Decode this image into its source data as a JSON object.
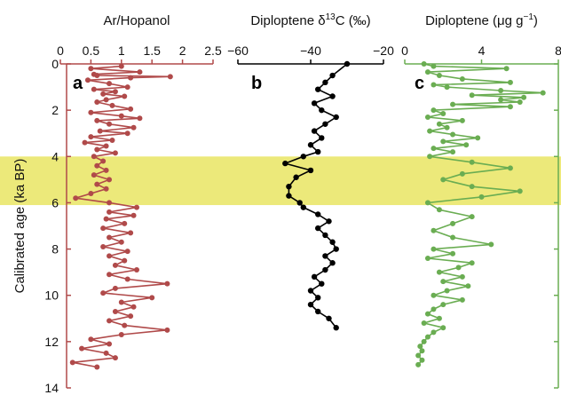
{
  "figure": {
    "y_axis_label": "Calibrated age (ka BP)",
    "highlight_color": "#ece97a"
  },
  "chart_data": [
    {
      "type": "line",
      "panel": "a",
      "xlabel": "Ar/Hopanol",
      "ylabel": "Calibrated age (ka BP)",
      "xlim": [
        0,
        2.5
      ],
      "ylim": [
        0,
        14
      ],
      "x_ticks": [
        "0",
        "0.5",
        "1",
        "1.5",
        "2",
        "2.5"
      ],
      "y_ticks": [
        "0",
        "2",
        "4",
        "6",
        "8",
        "10",
        "12",
        "14"
      ],
      "highlight_band": [
        4.0,
        6.1
      ],
      "color": "#b04a4a",
      "points": [
        {
          "y": 0.1,
          "x": 1.0
        },
        {
          "y": 0.2,
          "x": 0.5
        },
        {
          "y": 0.35,
          "x": 1.3
        },
        {
          "y": 0.45,
          "x": 0.55
        },
        {
          "y": 0.5,
          "x": 0.6
        },
        {
          "y": 0.55,
          "x": 1.8
        },
        {
          "y": 0.6,
          "x": 1.15
        },
        {
          "y": 0.7,
          "x": 0.45
        },
        {
          "y": 0.85,
          "x": 0.8
        },
        {
          "y": 1.0,
          "x": 1.1
        },
        {
          "y": 1.1,
          "x": 0.55
        },
        {
          "y": 1.2,
          "x": 0.9
        },
        {
          "y": 1.3,
          "x": 0.7
        },
        {
          "y": 1.4,
          "x": 1.05
        },
        {
          "y": 1.55,
          "x": 0.75
        },
        {
          "y": 1.65,
          "x": 0.6
        },
        {
          "y": 1.8,
          "x": 0.85
        },
        {
          "y": 1.95,
          "x": 1.15
        },
        {
          "y": 2.1,
          "x": 0.5
        },
        {
          "y": 2.25,
          "x": 1.0
        },
        {
          "y": 2.35,
          "x": 1.3
        },
        {
          "y": 2.45,
          "x": 0.6
        },
        {
          "y": 2.6,
          "x": 0.8
        },
        {
          "y": 2.75,
          "x": 1.2
        },
        {
          "y": 2.9,
          "x": 0.65
        },
        {
          "y": 3.0,
          "x": 1.1
        },
        {
          "y": 3.15,
          "x": 0.5
        },
        {
          "y": 3.3,
          "x": 0.85
        },
        {
          "y": 3.4,
          "x": 0.4
        },
        {
          "y": 3.55,
          "x": 0.75
        },
        {
          "y": 3.7,
          "x": 0.6
        },
        {
          "y": 3.85,
          "x": 0.9
        },
        {
          "y": 4.0,
          "x": 0.55
        },
        {
          "y": 4.2,
          "x": 0.7
        },
        {
          "y": 4.4,
          "x": 0.6
        },
        {
          "y": 4.6,
          "x": 0.75
        },
        {
          "y": 4.8,
          "x": 0.55
        },
        {
          "y": 5.0,
          "x": 0.8
        },
        {
          "y": 5.2,
          "x": 0.6
        },
        {
          "y": 5.4,
          "x": 0.75
        },
        {
          "y": 5.6,
          "x": 0.5
        },
        {
          "y": 5.8,
          "x": 0.25
        },
        {
          "y": 6.0,
          "x": 0.8
        },
        {
          "y": 6.2,
          "x": 1.25
        },
        {
          "y": 6.4,
          "x": 0.8
        },
        {
          "y": 6.55,
          "x": 1.2
        },
        {
          "y": 6.7,
          "x": 0.75
        },
        {
          "y": 6.9,
          "x": 1.05
        },
        {
          "y": 7.1,
          "x": 0.7
        },
        {
          "y": 7.3,
          "x": 1.15
        },
        {
          "y": 7.5,
          "x": 0.8
        },
        {
          "y": 7.7,
          "x": 1.0
        },
        {
          "y": 7.9,
          "x": 0.7
        },
        {
          "y": 8.1,
          "x": 1.1
        },
        {
          "y": 8.3,
          "x": 0.8
        },
        {
          "y": 8.5,
          "x": 1.05
        },
        {
          "y": 8.7,
          "x": 0.9
        },
        {
          "y": 8.9,
          "x": 1.25
        },
        {
          "y": 9.1,
          "x": 0.8
        },
        {
          "y": 9.3,
          "x": 1.1
        },
        {
          "y": 9.5,
          "x": 1.75
        },
        {
          "y": 9.7,
          "x": 0.9
        },
        {
          "y": 9.9,
          "x": 0.7
        },
        {
          "y": 10.1,
          "x": 1.5
        },
        {
          "y": 10.3,
          "x": 1.0
        },
        {
          "y": 10.5,
          "x": 1.2
        },
        {
          "y": 10.7,
          "x": 0.9
        },
        {
          "y": 10.9,
          "x": 1.15
        },
        {
          "y": 11.1,
          "x": 0.8
        },
        {
          "y": 11.3,
          "x": 1.05
        },
        {
          "y": 11.5,
          "x": 1.75
        },
        {
          "y": 11.7,
          "x": 1.0
        },
        {
          "y": 11.9,
          "x": 0.5
        },
        {
          "y": 12.1,
          "x": 0.8
        },
        {
          "y": 12.3,
          "x": 0.35
        },
        {
          "y": 12.5,
          "x": 0.75
        },
        {
          "y": 12.7,
          "x": 0.9
        },
        {
          "y": 12.9,
          "x": 0.2
        },
        {
          "y": 13.1,
          "x": 0.6
        }
      ]
    },
    {
      "type": "line",
      "panel": "b",
      "xlabel": "Diploptene δ13C (‰)",
      "xlabel_parts": [
        "Diploptene δ",
        "13",
        "C (‰)"
      ],
      "xlim": [
        -60,
        -20
      ],
      "x_ticks": [
        "−60",
        "−40",
        "−20"
      ],
      "color": "#000000",
      "points": [
        {
          "y": 0.0,
          "x": -30
        },
        {
          "y": 0.5,
          "x": -34
        },
        {
          "y": 0.8,
          "x": -36
        },
        {
          "y": 1.1,
          "x": -38
        },
        {
          "y": 1.4,
          "x": -34
        },
        {
          "y": 1.7,
          "x": -39
        },
        {
          "y": 2.0,
          "x": -37
        },
        {
          "y": 2.3,
          "x": -33
        },
        {
          "y": 2.6,
          "x": -36
        },
        {
          "y": 2.9,
          "x": -39
        },
        {
          "y": 3.2,
          "x": -37
        },
        {
          "y": 3.5,
          "x": -40
        },
        {
          "y": 3.8,
          "x": -38
        },
        {
          "y": 4.0,
          "x": -42
        },
        {
          "y": 4.3,
          "x": -47
        },
        {
          "y": 4.6,
          "x": -40
        },
        {
          "y": 4.9,
          "x": -44
        },
        {
          "y": 5.3,
          "x": -46
        },
        {
          "y": 5.7,
          "x": -46
        },
        {
          "y": 6.0,
          "x": -43
        },
        {
          "y": 6.2,
          "x": -42
        },
        {
          "y": 6.5,
          "x": -38
        },
        {
          "y": 6.8,
          "x": -35
        },
        {
          "y": 7.1,
          "x": -38
        },
        {
          "y": 7.4,
          "x": -36
        },
        {
          "y": 7.7,
          "x": -34
        },
        {
          "y": 8.0,
          "x": -33
        },
        {
          "y": 8.3,
          "x": -36
        },
        {
          "y": 8.6,
          "x": -34
        },
        {
          "y": 8.9,
          "x": -36
        },
        {
          "y": 9.2,
          "x": -39
        },
        {
          "y": 9.5,
          "x": -37
        },
        {
          "y": 9.8,
          "x": -40
        },
        {
          "y": 10.1,
          "x": -38
        },
        {
          "y": 10.4,
          "x": -40
        },
        {
          "y": 10.7,
          "x": -38
        },
        {
          "y": 11.0,
          "x": -35
        },
        {
          "y": 11.4,
          "x": -33
        }
      ]
    },
    {
      "type": "line",
      "panel": "c",
      "xlabel": "Diploptene (μg g−1)",
      "xlabel_parts": [
        "Diploptene (μg g",
        "−1",
        ")"
      ],
      "xlim": [
        0,
        8
      ],
      "x_ticks": [
        "0",
        "4",
        "8"
      ],
      "color": "#6aad52",
      "points": [
        {
          "y": 0.0,
          "x": 1.0
        },
        {
          "y": 0.1,
          "x": 1.5
        },
        {
          "y": 0.2,
          "x": 5.3
        },
        {
          "y": 0.35,
          "x": 1.2
        },
        {
          "y": 0.5,
          "x": 1.8
        },
        {
          "y": 0.65,
          "x": 3.0
        },
        {
          "y": 0.8,
          "x": 5.5
        },
        {
          "y": 0.9,
          "x": 1.5
        },
        {
          "y": 1.0,
          "x": 2.2
        },
        {
          "y": 1.15,
          "x": 5.0
        },
        {
          "y": 1.25,
          "x": 7.2
        },
        {
          "y": 1.35,
          "x": 3.5
        },
        {
          "y": 1.45,
          "x": 6.2
        },
        {
          "y": 1.55,
          "x": 5.0
        },
        {
          "y": 1.65,
          "x": 6.0
        },
        {
          "y": 1.75,
          "x": 2.5
        },
        {
          "y": 1.85,
          "x": 5.5
        },
        {
          "y": 2.0,
          "x": 1.5
        },
        {
          "y": 2.15,
          "x": 2.0
        },
        {
          "y": 2.3,
          "x": 1.2
        },
        {
          "y": 2.45,
          "x": 3.0
        },
        {
          "y": 2.6,
          "x": 1.8
        },
        {
          "y": 2.75,
          "x": 2.2
        },
        {
          "y": 2.9,
          "x": 1.3
        },
        {
          "y": 3.05,
          "x": 2.5
        },
        {
          "y": 3.2,
          "x": 3.8
        },
        {
          "y": 3.35,
          "x": 2.0
        },
        {
          "y": 3.5,
          "x": 3.2
        },
        {
          "y": 3.65,
          "x": 1.5
        },
        {
          "y": 3.8,
          "x": 2.5
        },
        {
          "y": 4.0,
          "x": 1.3
        },
        {
          "y": 4.25,
          "x": 3.5
        },
        {
          "y": 4.5,
          "x": 5.5
        },
        {
          "y": 4.75,
          "x": 3.0
        },
        {
          "y": 5.0,
          "x": 2.0
        },
        {
          "y": 5.3,
          "x": 3.5
        },
        {
          "y": 5.5,
          "x": 6.0
        },
        {
          "y": 5.75,
          "x": 4.0
        },
        {
          "y": 6.0,
          "x": 1.2
        },
        {
          "y": 6.3,
          "x": 1.8
        },
        {
          "y": 6.6,
          "x": 3.5
        },
        {
          "y": 6.9,
          "x": 2.5
        },
        {
          "y": 7.2,
          "x": 1.5
        },
        {
          "y": 7.5,
          "x": 2.5
        },
        {
          "y": 7.8,
          "x": 4.5
        },
        {
          "y": 8.0,
          "x": 1.5
        },
        {
          "y": 8.2,
          "x": 2.5
        },
        {
          "y": 8.4,
          "x": 1.2
        },
        {
          "y": 8.6,
          "x": 3.5
        },
        {
          "y": 8.8,
          "x": 2.8
        },
        {
          "y": 9.0,
          "x": 1.8
        },
        {
          "y": 9.2,
          "x": 3.0
        },
        {
          "y": 9.4,
          "x": 2.0
        },
        {
          "y": 9.6,
          "x": 3.3
        },
        {
          "y": 9.8,
          "x": 2.2
        },
        {
          "y": 10.0,
          "x": 1.5
        },
        {
          "y": 10.2,
          "x": 3.0
        },
        {
          "y": 10.4,
          "x": 2.0
        },
        {
          "y": 10.6,
          "x": 1.5
        },
        {
          "y": 10.8,
          "x": 1.2
        },
        {
          "y": 11.0,
          "x": 1.8
        },
        {
          "y": 11.2,
          "x": 1.0
        },
        {
          "y": 11.4,
          "x": 2.0
        },
        {
          "y": 11.6,
          "x": 1.5
        },
        {
          "y": 11.8,
          "x": 1.2
        },
        {
          "y": 12.0,
          "x": 1.0
        },
        {
          "y": 12.2,
          "x": 0.8
        },
        {
          "y": 12.4,
          "x": 0.9
        },
        {
          "y": 12.6,
          "x": 0.7
        },
        {
          "y": 12.8,
          "x": 0.9
        },
        {
          "y": 13.0,
          "x": 0.7
        }
      ]
    }
  ]
}
